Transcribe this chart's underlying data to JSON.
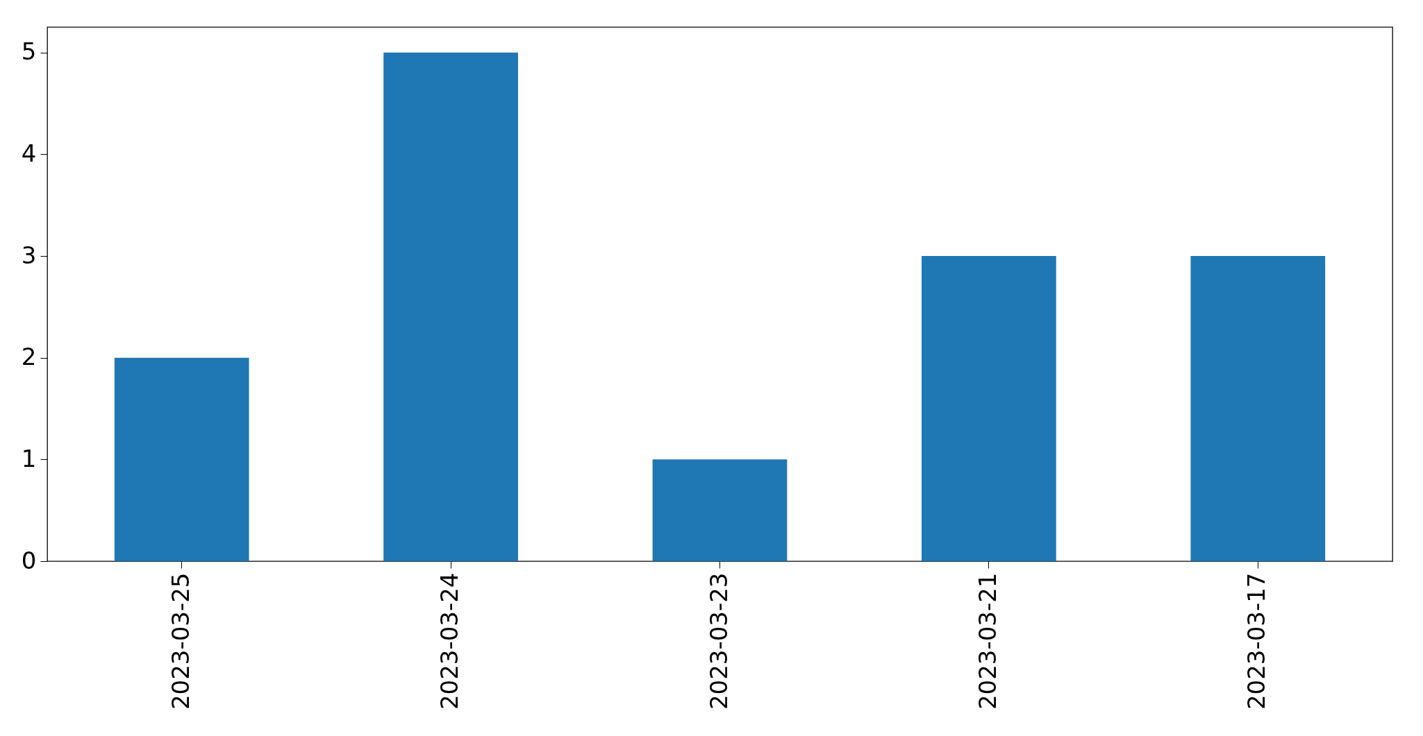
{
  "chart_data": {
    "type": "bar",
    "categories": [
      "2023-03-25",
      "2023-03-24",
      "2023-03-23",
      "2023-03-21",
      "2023-03-17"
    ],
    "values": [
      2,
      5,
      1,
      3,
      3
    ],
    "color": "#1f77b4",
    "ylim": [
      0,
      5.25
    ],
    "yticks": [
      0,
      1,
      2,
      3,
      4,
      5
    ],
    "grid": false
  }
}
